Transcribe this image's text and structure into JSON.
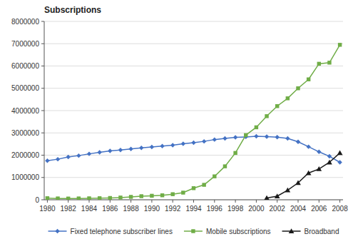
{
  "chart_data": {
    "type": "line",
    "title": "Subscriptions",
    "x": [
      1980,
      1981,
      1982,
      1983,
      1984,
      1985,
      1986,
      1987,
      1988,
      1989,
      1990,
      1991,
      1992,
      1993,
      1994,
      1995,
      1996,
      1997,
      1998,
      1999,
      2000,
      2001,
      2002,
      2003,
      2004,
      2005,
      2006,
      2007,
      2008
    ],
    "series": [
      {
        "name": "Fixed telephone subscriber lines",
        "color": "#4472C4",
        "marker": "diamond",
        "values": [
          1750000,
          1820000,
          1920000,
          1980000,
          2060000,
          2130000,
          2190000,
          2230000,
          2280000,
          2330000,
          2370000,
          2410000,
          2450000,
          2510000,
          2560000,
          2620000,
          2700000,
          2750000,
          2800000,
          2820000,
          2850000,
          2830000,
          2810000,
          2750000,
          2600000,
          2380000,
          2150000,
          1950000,
          1680000
        ]
      },
      {
        "name": "Mobile subscriptions",
        "color": "#70AD47",
        "marker": "square",
        "values": [
          70000,
          60000,
          55000,
          60000,
          65000,
          70000,
          80000,
          100000,
          130000,
          160000,
          180000,
          200000,
          250000,
          320000,
          520000,
          670000,
          1050000,
          1500000,
          2100000,
          2900000,
          3250000,
          3750000,
          4200000,
          4550000,
          5000000,
          5400000,
          6100000,
          6150000,
          6950000
        ]
      },
      {
        "name": "Broadband",
        "color": "#1a1a1a",
        "marker": "triangle",
        "values": [
          null,
          null,
          null,
          null,
          null,
          null,
          null,
          null,
          null,
          null,
          null,
          null,
          null,
          null,
          null,
          null,
          null,
          null,
          null,
          null,
          null,
          80000,
          160000,
          430000,
          760000,
          1200000,
          1380000,
          1680000,
          2100000
        ]
      }
    ],
    "xlim": [
      1979.7,
      2008.3
    ],
    "xticks": [
      1980,
      1982,
      1984,
      1986,
      1988,
      1990,
      1992,
      1994,
      1996,
      1998,
      2000,
      2002,
      2004,
      2006,
      2008
    ],
    "ylim": [
      0,
      8000000
    ],
    "yticks": [
      0,
      1000000,
      2000000,
      3000000,
      4000000,
      5000000,
      6000000,
      7000000,
      8000000
    ],
    "grid": "y",
    "legend": "bottom"
  }
}
